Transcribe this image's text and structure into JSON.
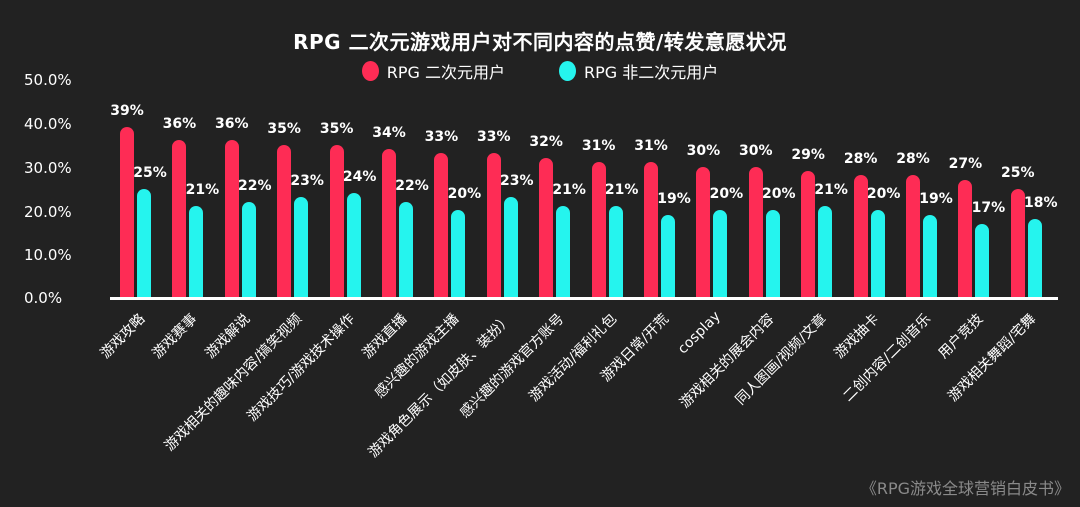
{
  "chart_data": {
    "type": "bar",
    "title": "RPG 二次元游戏用户对不同内容的点赞/转发意愿状况",
    "xlabel": "",
    "ylabel": "",
    "ylim": [
      0,
      50
    ],
    "yticks": [
      "0.0%",
      "10.0%",
      "20.0%",
      "30.0%",
      "40.0%",
      "50.0%"
    ],
    "grid": false,
    "legend_position": "top",
    "categories": [
      "游戏攻略",
      "游戏赛事",
      "游戏解说",
      "游戏相关的趣味内容/搞笑视频",
      "游戏技巧/游戏技术操作",
      "游戏直播",
      "感兴趣的游戏主播",
      "游戏角色展示（如皮肤、装扮）",
      "感兴趣的游戏官方账号",
      "游戏活动/福利礼包",
      "游戏日常/开荒",
      "cosplay",
      "游戏相关的展会内容",
      "同人图画/视频/文章",
      "游戏抽卡",
      "二创内容/二创音乐",
      "用户竞技",
      "游戏相关舞蹈/宅舞"
    ],
    "series": [
      {
        "name": "RPG 二次元用户",
        "color": "#fe2c55",
        "values": [
          39,
          36,
          36,
          35,
          35,
          34,
          33,
          33,
          32,
          31,
          31,
          30,
          30,
          29,
          28,
          28,
          27,
          25
        ]
      },
      {
        "name": "RPG 非二次元用户",
        "color": "#25f4ee",
        "values": [
          25,
          21,
          22,
          23,
          24,
          22,
          20,
          23,
          21,
          21,
          19,
          20,
          20,
          21,
          20,
          19,
          17,
          18
        ]
      }
    ]
  },
  "source": "《RPG游戏全球营销白皮书》"
}
